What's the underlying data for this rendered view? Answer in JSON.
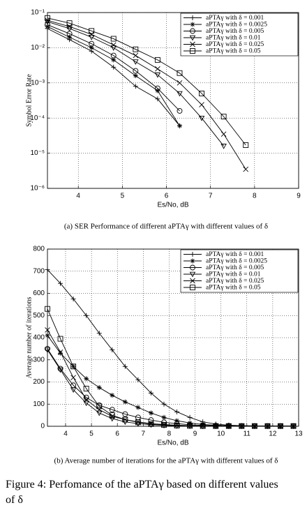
{
  "chart_data": [
    {
      "type": "line",
      "caption": "(a) SER Performance of different aPTAγ with different values of δ",
      "x_label": "Es/No, dB",
      "y_label": "Symbol Error Rate",
      "y_scale": "log",
      "grid": true,
      "legend": "top-right",
      "x": [
        3.3,
        3.8,
        4.3,
        4.8,
        5.3,
        5.8,
        6.3,
        6.8,
        7.3,
        7.8
      ],
      "xlim": [
        3.3,
        9
      ],
      "xticks": [
        4,
        5,
        6,
        7,
        8,
        9
      ],
      "ylim": [
        1e-06,
        0.1
      ],
      "yticks": [
        {
          "value": 1e-06,
          "label": "10⁻⁶"
        },
        {
          "value": 1e-05,
          "label": "10⁻⁵"
        },
        {
          "value": 0.0001,
          "label": "10⁻⁴"
        },
        {
          "value": 0.001,
          "label": "10⁻³"
        },
        {
          "value": 0.01,
          "label": "10⁻²"
        },
        {
          "value": 0.1,
          "label": "10⁻¹"
        }
      ],
      "series": [
        {
          "name": "aPTAγ with δ = 0.001",
          "color": "#000000",
          "marker": "+",
          "values": [
            0.035,
            0.017,
            0.008,
            0.0028,
            0.0008,
            0.00035,
            6e-05,
            null,
            null,
            null
          ]
        },
        {
          "name": "aPTAγ with δ = 0.0025",
          "color": "#000000",
          "marker": "*",
          "values": [
            0.04,
            0.02,
            0.01,
            0.0045,
            0.0016,
            0.0006,
            6e-05,
            null,
            null,
            null
          ]
        },
        {
          "name": "aPTAγ with δ = 0.005",
          "color": "#000000",
          "marker": "o",
          "values": [
            0.045,
            0.025,
            0.013,
            0.006,
            0.0022,
            0.0007,
            0.00016,
            null,
            null,
            null
          ]
        },
        {
          "name": "aPTAγ with δ = 0.01",
          "color": "#000000",
          "marker": "v",
          "values": [
            0.055,
            0.035,
            0.02,
            0.01,
            0.004,
            0.0017,
            0.0005,
            0.0001,
            1.6e-05,
            null
          ]
        },
        {
          "name": "aPTAγ with δ = 0.025",
          "color": "#000000",
          "marker": "x",
          "values": [
            0.06,
            0.04,
            0.024,
            0.012,
            0.006,
            0.0025,
            0.001,
            0.00024,
            3.5e-05,
            3.5e-06
          ]
        },
        {
          "name": "aPTAγ with δ = 0.05",
          "color": "#000000",
          "marker": "s",
          "values": [
            0.07,
            0.05,
            0.03,
            0.018,
            0.009,
            0.0045,
            0.0019,
            0.0005,
            0.00011,
            1.7e-05
          ]
        }
      ]
    },
    {
      "type": "line",
      "caption": "(b) Average number of iterations for the aPTAγ with different values of δ",
      "x_label": "Es/No, dB",
      "y_label": "Average number of iterations",
      "grid": true,
      "legend": "top-right",
      "x": [
        3.3,
        3.8,
        4.3,
        4.8,
        5.3,
        5.8,
        6.3,
        6.8,
        7.3,
        7.8,
        8.3,
        8.8,
        9.3,
        9.8,
        10.3,
        10.8,
        11.3,
        11.8,
        12.3,
        12.8
      ],
      "xlim": [
        3.3,
        13
      ],
      "xticks": [
        4,
        5,
        6,
        7,
        8,
        9,
        10,
        11,
        12,
        13
      ],
      "ylim": [
        0,
        800
      ],
      "yticks": [
        0,
        100,
        200,
        300,
        400,
        500,
        600,
        700,
        800
      ],
      "series": [
        {
          "name": "aPTAγ with δ = 0.001",
          "color": "#000000",
          "marker": "+",
          "values": [
            707,
            645,
            575,
            500,
            420,
            345,
            270,
            210,
            150,
            100,
            65,
            40,
            20,
            10,
            5,
            3,
            2,
            1,
            1,
            1
          ]
        },
        {
          "name": "aPTAγ with δ = 0.0025",
          "color": "#000000",
          "marker": "*",
          "values": [
            410,
            330,
            270,
            215,
            175,
            140,
            110,
            85,
            60,
            40,
            25,
            15,
            8,
            5,
            3,
            2,
            1,
            1,
            1,
            1
          ]
        },
        {
          "name": "aPTAγ with δ = 0.005",
          "color": "#000000",
          "marker": "o",
          "values": [
            350,
            260,
            185,
            130,
            95,
            75,
            55,
            40,
            28,
            18,
            12,
            7,
            4,
            3,
            2,
            1,
            1,
            1,
            1,
            1
          ]
        },
        {
          "name": "aPTAγ with δ = 0.01",
          "color": "#000000",
          "marker": "v",
          "values": [
            345,
            255,
            165,
            105,
            60,
            35,
            20,
            12,
            7,
            4,
            2,
            1,
            1,
            1,
            1,
            1,
            1,
            1,
            1,
            1
          ]
        },
        {
          "name": "aPTAγ with δ = 0.025",
          "color": "#000000",
          "marker": "x",
          "values": [
            435,
            335,
            220,
            120,
            75,
            45,
            30,
            20,
            12,
            8,
            5,
            3,
            2,
            1,
            1,
            1,
            1,
            1,
            1,
            1
          ]
        },
        {
          "name": "aPTAγ with δ = 0.05",
          "color": "#000000",
          "marker": "s",
          "values": [
            530,
            395,
            270,
            170,
            90,
            50,
            30,
            18,
            10,
            6,
            3,
            2,
            1,
            1,
            1,
            1,
            1,
            1,
            1,
            1
          ]
        }
      ]
    }
  ],
  "figure_caption": "Figure 4: Perfomance of the aPTAγ based on different values of δ"
}
